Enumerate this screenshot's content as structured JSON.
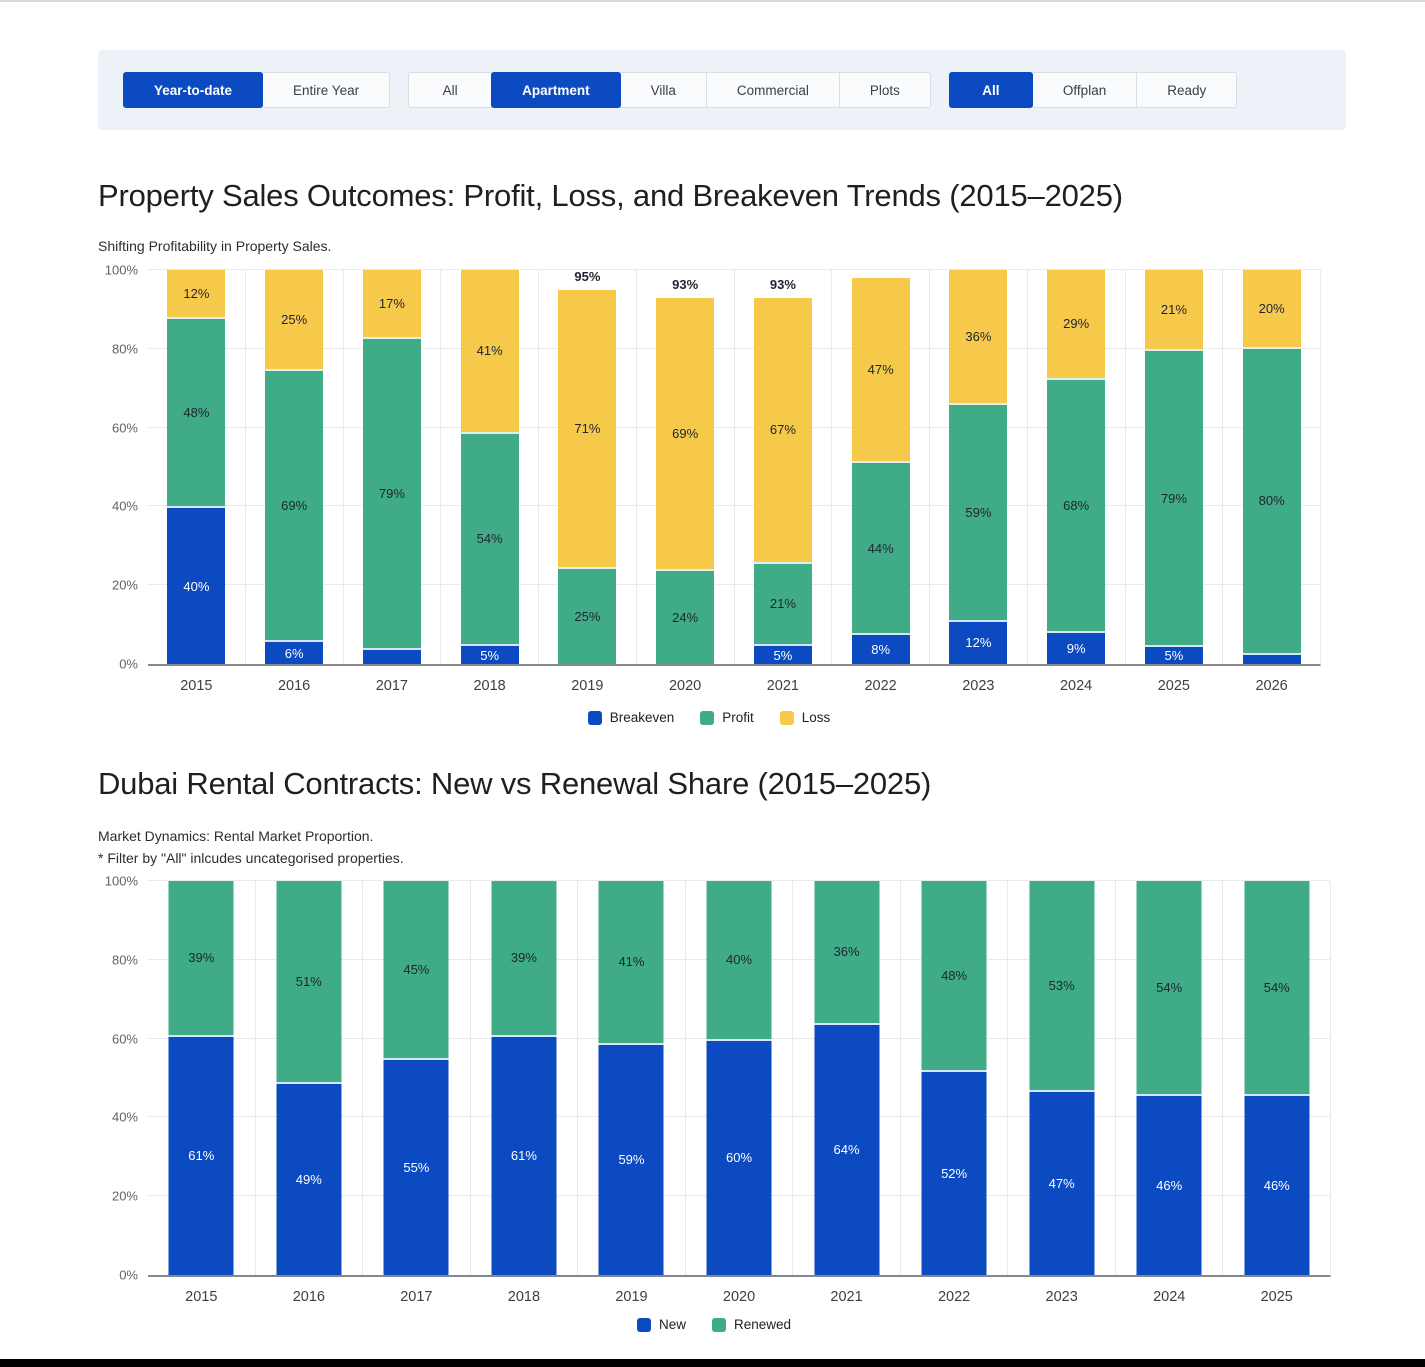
{
  "top_bar": {
    "groups": [
      {
        "name": "period",
        "buttons": [
          {
            "label": "Year-to-date",
            "selected": true
          },
          {
            "label": "Entire Year",
            "selected": false
          }
        ]
      },
      {
        "name": "property-type",
        "buttons": [
          {
            "label": "All",
            "selected": false
          },
          {
            "label": "Apartment",
            "selected": true
          },
          {
            "label": "Villa",
            "selected": false
          },
          {
            "label": "Commercial",
            "selected": false
          },
          {
            "label": "Plots",
            "selected": false
          }
        ]
      },
      {
        "name": "completion",
        "buttons": [
          {
            "label": "All",
            "selected": true
          },
          {
            "label": "Offplan",
            "selected": false
          },
          {
            "label": "Ready",
            "selected": false
          }
        ]
      }
    ]
  },
  "colors": {
    "accent_blue": "#0b4ac1",
    "green": "#3fac87",
    "yellow": "#f6c94a",
    "filter_bar_background": "#edf1f8",
    "gridline": "#e8eaed",
    "axis_text": "#5f6368"
  },
  "chart_data": [
    {
      "type": "bar",
      "stacked": true,
      "title": "Property Sales Outcomes: Profit, Loss, and Breakeven Trends (2015–2025)",
      "subtitle": "Shifting Profitability in Property Sales.",
      "categories": [
        "2015",
        "2016",
        "2017",
        "2018",
        "2019",
        "2020",
        "2021",
        "2022",
        "2023",
        "2024",
        "2025",
        "2026"
      ],
      "series": [
        {
          "name": "Breakeven",
          "color": "#0b4ac1",
          "label_color": "#ffffff",
          "values": [
            40,
            6,
            4,
            5,
            0,
            0,
            5,
            8,
            12,
            9,
            5,
            3
          ],
          "labels": [
            "40%",
            "6%",
            "",
            "5%",
            "",
            "",
            "5%",
            "8%",
            "12%",
            "9%",
            "5%",
            ""
          ]
        },
        {
          "name": "Profit",
          "color": "#3fac87",
          "label_color": "#1f2430",
          "values": [
            48,
            69,
            79,
            54,
            25,
            24,
            21,
            44,
            59,
            68,
            79,
            80
          ],
          "labels": [
            "48%",
            "69%",
            "79%",
            "54%",
            "25%",
            "24%",
            "21%",
            "44%",
            "59%",
            "68%",
            "79%",
            "80%"
          ]
        },
        {
          "name": "Loss",
          "color": "#f6c94a",
          "label_color": "#1f2430",
          "values": [
            12,
            25,
            17,
            41,
            71,
            69,
            67,
            47,
            36,
            29,
            21,
            20
          ],
          "labels": [
            "12%",
            "25%",
            "17%",
            "41%",
            "71%",
            "69%",
            "67%",
            "47%",
            "36%",
            "29%",
            "21%",
            "20%"
          ]
        }
      ],
      "bar_tops": [
        100,
        100,
        100,
        100,
        95,
        93,
        93,
        98,
        100,
        100,
        100,
        100
      ],
      "bar_top_labels": [
        "",
        "",
        "",
        "",
        "95%",
        "93%",
        "93%",
        "",
        "",
        "",
        "",
        ""
      ],
      "yticks": [
        "0%",
        "20%",
        "40%",
        "60%",
        "80%",
        "100%"
      ],
      "ylim": [
        0,
        100
      ],
      "grid": true,
      "legend_position": "bottom",
      "legend": [
        "Breakeven",
        "Profit",
        "Loss"
      ]
    },
    {
      "type": "bar",
      "stacked": true,
      "title": "Dubai Rental Contracts: New vs Renewal Share (2015–2025)",
      "subtitle": "Market Dynamics: Rental Market Proportion.",
      "note": "* Filter by \"All\" inlcudes uncategorised properties.",
      "categories": [
        "2015",
        "2016",
        "2017",
        "2018",
        "2019",
        "2020",
        "2021",
        "2022",
        "2023",
        "2024",
        "2025"
      ],
      "series": [
        {
          "name": "New",
          "color": "#0b4ac1",
          "label_color": "#ffffff",
          "values": [
            61,
            49,
            55,
            61,
            59,
            60,
            64,
            52,
            47,
            46,
            46
          ],
          "labels": [
            "61%",
            "49%",
            "55%",
            "61%",
            "59%",
            "60%",
            "64%",
            "52%",
            "47%",
            "46%",
            "46%"
          ]
        },
        {
          "name": "Renewed",
          "color": "#3fac87",
          "label_color": "#1f2430",
          "values": [
            39,
            51,
            45,
            39,
            41,
            40,
            36,
            48,
            53,
            54,
            54
          ],
          "labels": [
            "39%",
            "51%",
            "45%",
            "39%",
            "41%",
            "40%",
            "36%",
            "48%",
            "53%",
            "54%",
            "54%"
          ]
        }
      ],
      "bar_tops": [
        100,
        100,
        100,
        100,
        100,
        100,
        100,
        100,
        100,
        100,
        100
      ],
      "bar_top_labels": [
        "",
        "",
        "",
        "",
        "",
        "",
        "",
        "",
        "",
        "",
        ""
      ],
      "yticks": [
        "0%",
        "20%",
        "40%",
        "60%",
        "80%",
        "100%"
      ],
      "ylim": [
        0,
        100
      ],
      "grid": true,
      "legend_position": "bottom",
      "legend": [
        "New",
        "Renewed"
      ]
    }
  ]
}
